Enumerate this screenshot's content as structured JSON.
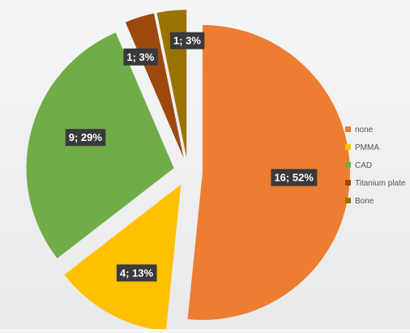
{
  "chart_data": {
    "type": "pie",
    "title": "",
    "legend_position": "right",
    "slices": [
      {
        "name": "none",
        "value": 16,
        "percent": 52,
        "label": "16; 52%",
        "color": "#ed7d31"
      },
      {
        "name": "PMMA",
        "value": 4,
        "percent": 13,
        "label": "4; 13%",
        "color": "#ffc000"
      },
      {
        "name": "CAD",
        "value": 9,
        "percent": 29,
        "label": "9; 29%",
        "color": "#70ad47"
      },
      {
        "name": "Titanium plate",
        "value": 1,
        "percent": 3,
        "label": "1; 3%",
        "color": "#9e480e"
      },
      {
        "name": "Bone",
        "value": 1,
        "percent": 3,
        "label": "1; 3%",
        "color": "#997300"
      }
    ]
  }
}
